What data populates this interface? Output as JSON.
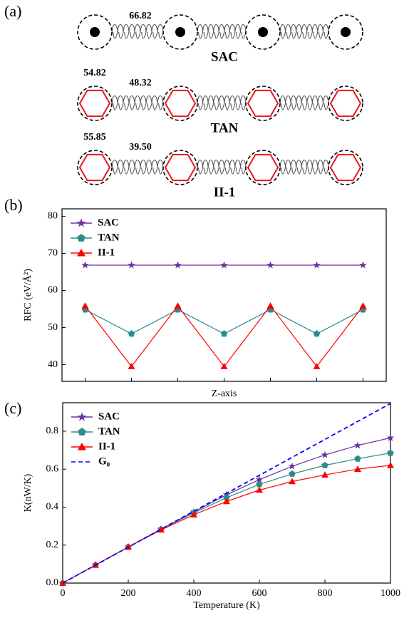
{
  "panel_a": {
    "label": "(a)",
    "rows": [
      {
        "name": "SAC",
        "bond": "66.82"
      },
      {
        "name": "TAN",
        "site": "54.82",
        "bond": "48.32"
      },
      {
        "name": "II-1",
        "site": "55.85",
        "bond": "39.50"
      }
    ]
  },
  "chart_data": [
    {
      "type": "line",
      "panel_label": "(b)",
      "y_label": "RFC (eV/Å²)",
      "x_label": "Z-axis",
      "categories": [
        null,
        null,
        null,
        null,
        null,
        null,
        null
      ],
      "ylim": [
        35.5,
        82
      ],
      "yticks": [
        40,
        50,
        60,
        70,
        80
      ],
      "legend": "upper left",
      "series": [
        {
          "name": "SAC",
          "color": "#7030a0",
          "marker": "star",
          "values": [
            66.82,
            66.82,
            66.82,
            66.82,
            66.82,
            66.82,
            66.82
          ]
        },
        {
          "name": "TAN",
          "color": "#2e8b8b",
          "marker": "pentagon",
          "values": [
            54.82,
            48.32,
            54.82,
            48.32,
            54.82,
            48.32,
            54.82
          ]
        },
        {
          "name": "II-1",
          "color": "#ff0000",
          "marker": "triangle",
          "values": [
            55.85,
            39.5,
            55.85,
            39.5,
            55.85,
            39.5,
            55.85
          ]
        }
      ]
    },
    {
      "type": "line",
      "panel_label": "(c)",
      "y_label": "K(nW/K)",
      "x_label": "Temperature (K)",
      "x": [
        0,
        100,
        200,
        300,
        400,
        500,
        600,
        700,
        800,
        900,
        1000
      ],
      "xlim": [
        0,
        1000
      ],
      "xticks": [
        0,
        200,
        400,
        600,
        800,
        1000
      ],
      "ylim": [
        0,
        0.95
      ],
      "yticks": [
        {
          "value": 0,
          "label": "0.0"
        },
        0.2,
        0.4,
        0.6,
        0.8
      ],
      "legend": "upper left",
      "series": [
        {
          "name": "SAC",
          "color": "#7030a0",
          "marker": "star",
          "values": [
            0,
            0.095,
            0.19,
            0.285,
            0.375,
            0.465,
            0.545,
            0.615,
            0.675,
            0.725,
            0.765
          ]
        },
        {
          "name": "TAN",
          "color": "#2e8b8b",
          "marker": "pentagon",
          "values": [
            0,
            0.095,
            0.19,
            0.283,
            0.37,
            0.45,
            0.52,
            0.575,
            0.62,
            0.655,
            0.685
          ]
        },
        {
          "name": "II-1",
          "color": "#ff0000",
          "marker": "triangle",
          "values": [
            0,
            0.095,
            0.19,
            0.28,
            0.36,
            0.43,
            0.49,
            0.535,
            0.57,
            0.6,
            0.62
          ]
        },
        {
          "name": "G₀",
          "color": "#0000ff",
          "linestyle": "dashed",
          "values": [
            0,
            0.0946,
            0.1892,
            0.2838,
            0.3784,
            0.473,
            0.5676,
            0.6622,
            0.7568,
            0.8514,
            0.946
          ]
        }
      ]
    }
  ]
}
